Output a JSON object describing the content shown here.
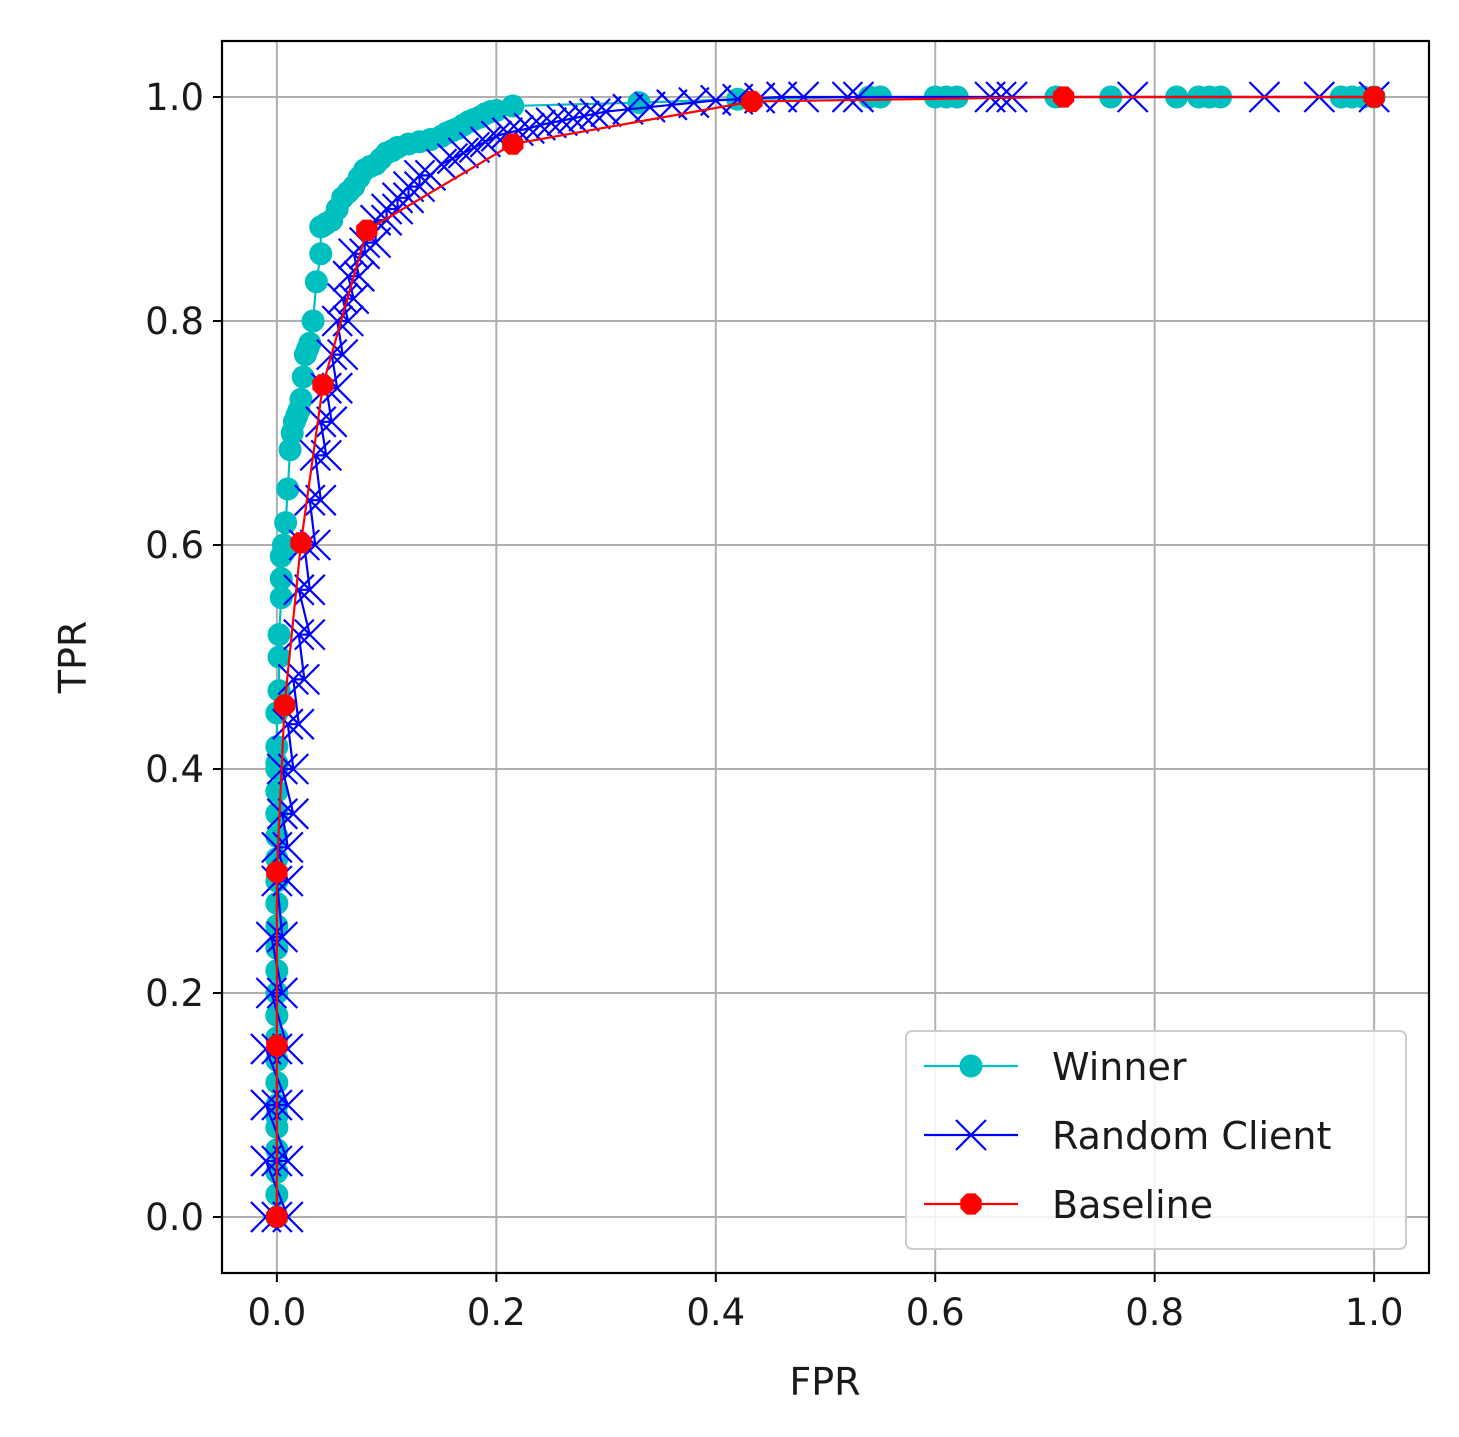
{
  "chart_data": {
    "type": "line",
    "title": "",
    "xlabel": "FPR",
    "ylabel": "TPR",
    "xlim": [
      -0.05,
      1.05
    ],
    "ylim": [
      -0.05,
      1.05
    ],
    "xticks": [
      0.0,
      0.2,
      0.4,
      0.6,
      0.8,
      1.0
    ],
    "yticks": [
      0.0,
      0.2,
      0.4,
      0.6,
      0.8,
      1.0
    ],
    "xtick_labels": [
      "0.0",
      "0.2",
      "0.4",
      "0.6",
      "0.8",
      "1.0"
    ],
    "ytick_labels": [
      "0.0",
      "0.2",
      "0.4",
      "0.6",
      "0.8",
      "1.0"
    ],
    "grid": true,
    "legend_position": "lower-right",
    "series": [
      {
        "name": "Winner",
        "color": "#00bfbf",
        "marker": "circle",
        "x": [
          0.0,
          0.0,
          0.0,
          0.0,
          0.0,
          0.0,
          0.0,
          0.0,
          0.0,
          0.0,
          0.0,
          0.0,
          0.0,
          0.0,
          0.0,
          0.0,
          0.0,
          0.0,
          0.0,
          0.0,
          0.0,
          0.0,
          0.0,
          0.0,
          0.0,
          0.002,
          0.002,
          0.002,
          0.004,
          0.004,
          0.004,
          0.006,
          0.006,
          0.008,
          0.01,
          0.012,
          0.014,
          0.016,
          0.018,
          0.02,
          0.022,
          0.024,
          0.026,
          0.028,
          0.03,
          0.033,
          0.036,
          0.04,
          0.04,
          0.042,
          0.045,
          0.05,
          0.055,
          0.06,
          0.065,
          0.07,
          0.075,
          0.08,
          0.085,
          0.09,
          0.095,
          0.1,
          0.105,
          0.11,
          0.12,
          0.13,
          0.14,
          0.15,
          0.155,
          0.16,
          0.165,
          0.17,
          0.175,
          0.18,
          0.185,
          0.19,
          0.195,
          0.2,
          0.215,
          0.33,
          0.42,
          0.54,
          0.55,
          0.6,
          0.61,
          0.62,
          0.71,
          0.76,
          0.82,
          0.84,
          0.85,
          0.86,
          0.97,
          0.98,
          0.99,
          1.0
        ],
        "y": [
          0.0,
          0.02,
          0.04,
          0.06,
          0.08,
          0.09,
          0.1,
          0.12,
          0.14,
          0.16,
          0.18,
          0.2,
          0.22,
          0.24,
          0.26,
          0.28,
          0.3,
          0.32,
          0.34,
          0.36,
          0.38,
          0.4,
          0.405,
          0.42,
          0.45,
          0.47,
          0.5,
          0.52,
          0.553,
          0.57,
          0.59,
          0.593,
          0.6,
          0.62,
          0.65,
          0.685,
          0.7,
          0.71,
          0.715,
          0.72,
          0.73,
          0.75,
          0.77,
          0.775,
          0.78,
          0.8,
          0.835,
          0.86,
          0.884,
          0.885,
          0.887,
          0.89,
          0.9,
          0.91,
          0.915,
          0.92,
          0.928,
          0.935,
          0.938,
          0.94,
          0.945,
          0.95,
          0.952,
          0.955,
          0.958,
          0.96,
          0.962,
          0.965,
          0.968,
          0.97,
          0.972,
          0.975,
          0.978,
          0.98,
          0.982,
          0.985,
          0.987,
          0.988,
          0.992,
          0.995,
          0.998,
          1.0,
          1.0,
          1.0,
          1.0,
          1.0,
          1.0,
          1.0,
          1.0,
          1.0,
          1.0,
          1.0,
          1.0,
          1.0,
          1.0,
          1.0
        ]
      },
      {
        "name": "Random Client",
        "color": "#0000ff",
        "marker": "x",
        "x": [
          -0.01,
          0.0,
          0.01,
          -0.01,
          0.0,
          0.01,
          -0.01,
          0.0,
          0.01,
          -0.01,
          0.0,
          0.01,
          -0.005,
          0.005,
          -0.005,
          0.005,
          0.0,
          0.01,
          0.0,
          0.01,
          0.005,
          0.015,
          0.005,
          0.015,
          0.01,
          0.02,
          0.015,
          0.025,
          0.02,
          0.03,
          0.02,
          0.03,
          0.025,
          0.035,
          0.03,
          0.04,
          0.035,
          0.045,
          0.04,
          0.05,
          0.045,
          0.055,
          0.05,
          0.06,
          0.055,
          0.065,
          0.06,
          0.07,
          0.065,
          0.075,
          0.07,
          0.08,
          0.08,
          0.09,
          0.09,
          0.1,
          0.1,
          0.11,
          0.11,
          0.12,
          0.12,
          0.13,
          0.13,
          0.14,
          0.15,
          0.16,
          0.17,
          0.18,
          0.19,
          0.2,
          0.21,
          0.22,
          0.23,
          0.24,
          0.25,
          0.26,
          0.27,
          0.28,
          0.29,
          0.3,
          0.32,
          0.34,
          0.36,
          0.38,
          0.4,
          0.42,
          0.44,
          0.46,
          0.48,
          0.52,
          0.53,
          0.65,
          0.66,
          0.67,
          0.78,
          0.9,
          0.95,
          1.0
        ],
        "y": [
          0.0,
          0.0,
          0.0,
          0.05,
          0.05,
          0.05,
          0.1,
          0.1,
          0.1,
          0.15,
          0.15,
          0.15,
          0.2,
          0.2,
          0.25,
          0.25,
          0.3,
          0.3,
          0.33,
          0.33,
          0.36,
          0.36,
          0.4,
          0.4,
          0.44,
          0.44,
          0.48,
          0.48,
          0.52,
          0.52,
          0.56,
          0.56,
          0.6,
          0.6,
          0.64,
          0.64,
          0.68,
          0.68,
          0.71,
          0.71,
          0.74,
          0.74,
          0.77,
          0.77,
          0.8,
          0.8,
          0.82,
          0.82,
          0.84,
          0.84,
          0.86,
          0.86,
          0.87,
          0.87,
          0.89,
          0.89,
          0.9,
          0.9,
          0.91,
          0.91,
          0.92,
          0.92,
          0.93,
          0.93,
          0.94,
          0.945,
          0.95,
          0.955,
          0.96,
          0.965,
          0.968,
          0.97,
          0.972,
          0.975,
          0.977,
          0.979,
          0.981,
          0.983,
          0.985,
          0.987,
          0.989,
          0.991,
          0.993,
          0.995,
          0.997,
          0.998,
          0.999,
          1.0,
          1.0,
          1.0,
          1.0,
          1.0,
          1.0,
          1.0,
          1.0,
          1.0,
          1.0,
          1.0
        ]
      },
      {
        "name": "Baseline",
        "color": "#ff0000",
        "marker": "filled-octagon",
        "x": [
          0.0,
          0.0,
          0.0,
          0.007,
          0.022,
          0.042,
          0.082,
          0.215,
          0.433,
          0.717,
          1.0
        ],
        "y": [
          0.0,
          0.153,
          0.308,
          0.457,
          0.602,
          0.743,
          0.881,
          0.958,
          0.996,
          1.0,
          1.0
        ]
      }
    ]
  }
}
